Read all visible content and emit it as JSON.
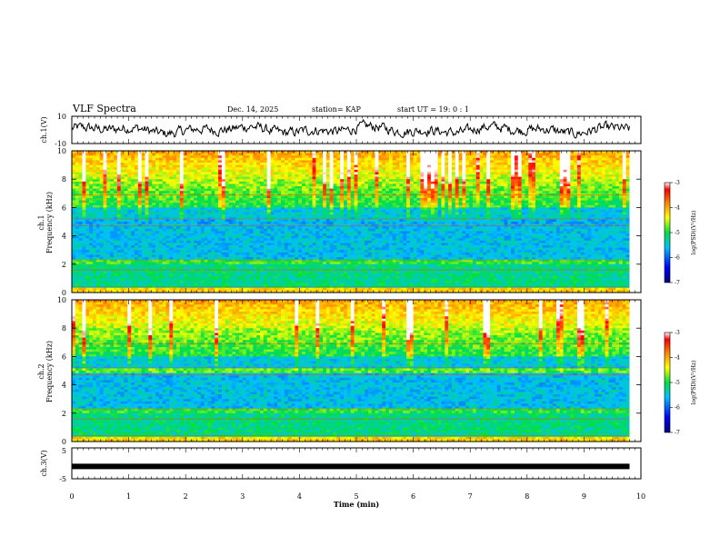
{
  "header": {
    "title": "VLF Spectra",
    "date": "Dec. 14, 2025",
    "station": "station= KAP",
    "start": "start  UT =   19: 0  : 1"
  },
  "colors": {
    "spectrogram_scale": [
      "#ffffff",
      "#0000ff",
      "#00c0ff",
      "#00e040",
      "#ffff00",
      "#ff8000",
      "#ff0000"
    ],
    "trace": "#000000"
  },
  "chart_data": [
    {
      "type": "line",
      "name": "ch1-waveform",
      "ylabel": "ch.1(V)",
      "ylim": [
        -10,
        10
      ],
      "yticks": [
        "10",
        "-10"
      ],
      "xlim": [
        0,
        10
      ],
      "description_series": "noisy voltage trace around 0 V, amplitude ~ ±5 V"
    },
    {
      "type": "heatmap",
      "name": "ch1-spectrogram",
      "ylabel": "ch.1",
      "ylabel2": "Frequency (kHz)",
      "ylim": [
        0,
        10
      ],
      "yticks": [
        "0",
        "2",
        "4",
        "6",
        "8",
        "10"
      ],
      "xlim": [
        0,
        10
      ],
      "colorbar": {
        "label": "log(PSD)(V²/Hz)",
        "range": [
          -7,
          -3
        ],
        "ticks": [
          "-3",
          "-4",
          "-5",
          "-6",
          "-7"
        ]
      }
    },
    {
      "type": "heatmap",
      "name": "ch2-spectrogram",
      "ylabel": "ch.2",
      "ylabel2": "Frequency (kHz)",
      "ylim": [
        0,
        10
      ],
      "yticks": [
        "0",
        "2",
        "4",
        "6",
        "8",
        "10"
      ],
      "xlim": [
        0,
        10
      ],
      "colorbar": {
        "label": "log(PSD)(V²/Hz)",
        "range": [
          -7,
          -3
        ],
        "ticks": [
          "-3",
          "-4",
          "-5",
          "-6",
          "-7"
        ]
      }
    },
    {
      "type": "line",
      "name": "ch3-signal",
      "ylabel": "ch.3(V)",
      "ylim": [
        -5,
        5
      ],
      "yticks": [
        "5",
        "-5"
      ],
      "xlim": [
        0,
        10
      ],
      "constant_value": -1
    }
  ],
  "xaxis": {
    "label": "Time  (min)",
    "ticks": [
      "0",
      "1",
      "2",
      "3",
      "4",
      "5",
      "6",
      "7",
      "8",
      "9",
      "10"
    ],
    "data_end": 9.8
  }
}
